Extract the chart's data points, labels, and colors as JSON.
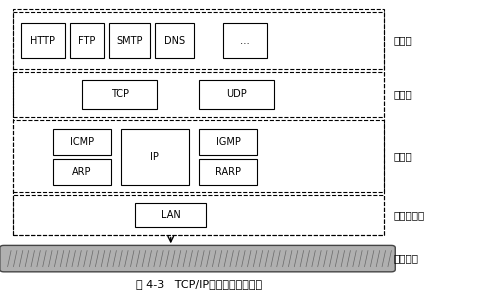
{
  "title": "图 4-3   TCP/IP不同层次协议分布",
  "background": "#ffffff",
  "fig_width": 4.92,
  "fig_height": 2.92,
  "dpi": 100,
  "layer_labels": [
    "应用层",
    "传输层",
    "网络层",
    "网络访问层",
    "通信介质"
  ],
  "app_protos": [
    "HTTP",
    "FTP",
    "SMTP",
    "DNS",
    "…"
  ],
  "transport_protos": [
    "TCP",
    "UDP"
  ],
  "net_protos_left": [
    "ICMP",
    "ARP"
  ],
  "net_protos_center": [
    "IP"
  ],
  "net_protos_right": [
    "IGMP",
    "RARP"
  ],
  "access_protos": [
    "LAN"
  ]
}
